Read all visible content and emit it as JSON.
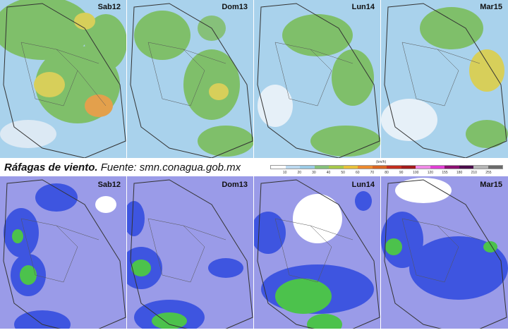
{
  "caption": {
    "lead": "Ráfagas de viento.",
    "source": " Fuente: smn.conagua.gob.mx"
  },
  "legend": {
    "unit": "(km/h)",
    "ticks": [
      "10",
      "20",
      "30",
      "40",
      "50",
      "60",
      "70",
      "80",
      "90",
      "100",
      "120",
      "155",
      "180",
      "210",
      "255"
    ],
    "colors": [
      "#ffffff",
      "#bcd9f0",
      "#9ccbe6",
      "#86c07a",
      "#a6c84a",
      "#e8c13a",
      "#ec8a2e",
      "#d86522",
      "#c22e1e",
      "#a21b1b",
      "#f08ae6",
      "#e03fd3",
      "#8a1070",
      "#4b0c4a",
      "#b5b5b5",
      "#6a6a6a"
    ]
  },
  "top_panels": [
    {
      "day": "Sab12"
    },
    {
      "day": "Dom13"
    },
    {
      "day": "Lun14"
    },
    {
      "day": "Mar15"
    }
  ],
  "bottom_panels": [
    {
      "day": "Sab12"
    },
    {
      "day": "Dom13"
    },
    {
      "day": "Lun14"
    },
    {
      "day": "Mar15"
    }
  ],
  "colors": {
    "gust_base": "#a9d2ec",
    "gust_green": "#7fbf6a",
    "gust_yellow": "#d7cf5a",
    "gust_orange": "#e3a04c",
    "wind_base": "#9a9be8",
    "wind_blue": "#3e55e0",
    "wind_green": "#4cc24c",
    "outline": "#333333"
  }
}
